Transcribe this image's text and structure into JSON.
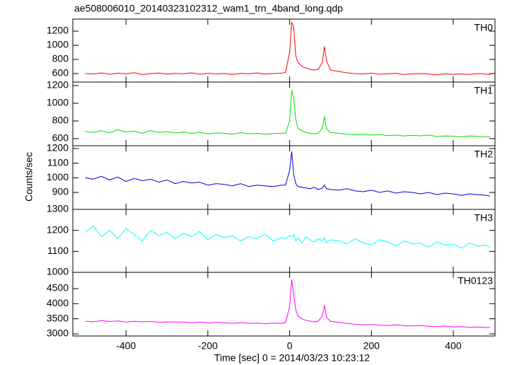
{
  "title": "ae508006010_20140323102312_wam1_trn_4band_long.qdp",
  "ylabel": "Counts/sec",
  "xlabel": "Time [sec] 0 = 2014/03/23 10:23:12",
  "chart_data": [
    {
      "type": "line",
      "xlim": [
        -530,
        502
      ],
      "xticks": [
        -400,
        -200,
        0,
        200,
        400
      ],
      "ylim": [
        480,
        1370
      ],
      "yticks": [
        600,
        800,
        1000,
        1200
      ],
      "x": [
        -500,
        -480,
        -460,
        -440,
        -420,
        -400,
        -380,
        -360,
        -340,
        -320,
        -300,
        -280,
        -260,
        -240,
        -220,
        -200,
        -180,
        -160,
        -140,
        -120,
        -100,
        -80,
        -60,
        -40,
        -20,
        -10,
        0,
        5,
        10,
        15,
        20,
        30,
        40,
        50,
        60,
        70,
        80,
        85,
        90,
        100,
        120,
        140,
        160,
        180,
        200,
        220,
        240,
        260,
        280,
        300,
        320,
        340,
        360,
        380,
        400,
        420,
        440,
        460,
        480,
        490
      ],
      "series": [
        {
          "name": "TH0",
          "color": "#ff0000",
          "values": [
            600,
            595,
            610,
            590,
            605,
            598,
            612,
            585,
            600,
            607,
            593,
            602,
            598,
            610,
            590,
            604,
            596,
            601,
            588,
            603,
            597,
            609,
            592,
            600,
            605,
            615,
            900,
            1330,
            1250,
            850,
            760,
            700,
            680,
            660,
            650,
            660,
            760,
            980,
            780,
            650,
            630,
            610,
            600,
            595,
            605,
            590,
            598,
            602,
            588,
            596,
            600,
            592,
            585,
            598,
            590,
            595,
            587,
            600,
            592,
            585
          ]
        }
      ]
    },
    {
      "type": "line",
      "xlim": [
        -530,
        502
      ],
      "xticks": [
        -400,
        -200,
        0,
        200,
        400
      ],
      "ylim": [
        520,
        1240
      ],
      "yticks": [
        600,
        800,
        1000,
        1200
      ],
      "x": [
        -500,
        -480,
        -460,
        -440,
        -420,
        -400,
        -380,
        -360,
        -340,
        -320,
        -300,
        -280,
        -260,
        -240,
        -220,
        -200,
        -180,
        -160,
        -140,
        -120,
        -100,
        -80,
        -60,
        -40,
        -20,
        -10,
        0,
        5,
        10,
        15,
        20,
        30,
        40,
        50,
        60,
        70,
        80,
        85,
        90,
        100,
        120,
        140,
        160,
        180,
        200,
        220,
        240,
        260,
        280,
        300,
        320,
        340,
        360,
        380,
        400,
        420,
        440,
        460,
        480,
        490
      ],
      "series": [
        {
          "name": "TH1",
          "color": "#00e000",
          "values": [
            680,
            670,
            690,
            665,
            700,
            675,
            685,
            660,
            690,
            670,
            680,
            665,
            675,
            660,
            670,
            655,
            665,
            660,
            650,
            668,
            655,
            660,
            650,
            658,
            662,
            660,
            800,
            1150,
            1050,
            820,
            720,
            690,
            670,
            660,
            655,
            660,
            720,
            850,
            710,
            670,
            660,
            650,
            645,
            650,
            640,
            645,
            635,
            640,
            630,
            638,
            632,
            640,
            625,
            630,
            628,
            620,
            630,
            625,
            618,
            622
          ]
        }
      ]
    },
    {
      "type": "line",
      "xlim": [
        -530,
        502
      ],
      "xticks": [
        -400,
        -200,
        0,
        200,
        400
      ],
      "ylim": [
        784,
        1219
      ],
      "yticks": [
        900,
        1000,
        1100,
        1200
      ],
      "x": [
        -500,
        -480,
        -460,
        -440,
        -420,
        -400,
        -380,
        -360,
        -340,
        -320,
        -300,
        -280,
        -260,
        -240,
        -220,
        -200,
        -180,
        -160,
        -140,
        -120,
        -100,
        -80,
        -60,
        -40,
        -20,
        -10,
        0,
        5,
        10,
        15,
        20,
        30,
        40,
        50,
        60,
        70,
        80,
        85,
        90,
        100,
        120,
        140,
        160,
        180,
        200,
        220,
        240,
        260,
        280,
        300,
        320,
        340,
        360,
        380,
        400,
        420,
        440,
        460,
        480,
        490
      ],
      "series": [
        {
          "name": "TH2",
          "color": "#0000e0",
          "values": [
            1000,
            990,
            1010,
            985,
            1005,
            975,
            995,
            980,
            990,
            970,
            985,
            960,
            975,
            965,
            970,
            950,
            960,
            955,
            945,
            960,
            940,
            950,
            945,
            940,
            950,
            950,
            1050,
            1180,
            1020,
            960,
            940,
            935,
            930,
            925,
            935,
            920,
            930,
            950,
            925,
            920,
            915,
            925,
            910,
            905,
            915,
            900,
            910,
            895,
            905,
            900,
            890,
            900,
            885,
            895,
            890,
            880,
            890,
            885,
            880,
            875
          ]
        }
      ]
    },
    {
      "type": "line",
      "xlim": [
        -530,
        502
      ],
      "xticks": [
        -400,
        -200,
        0,
        200,
        400
      ],
      "ylim": [
        1000,
        1300
      ],
      "yticks": [
        1000,
        1100,
        1200,
        1300
      ],
      "x": [
        -500,
        -480,
        -460,
        -440,
        -420,
        -400,
        -380,
        -360,
        -340,
        -320,
        -300,
        -280,
        -260,
        -240,
        -220,
        -200,
        -180,
        -160,
        -140,
        -120,
        -100,
        -80,
        -60,
        -40,
        -20,
        -10,
        0,
        5,
        10,
        15,
        20,
        30,
        40,
        50,
        60,
        70,
        80,
        85,
        90,
        100,
        120,
        140,
        160,
        180,
        200,
        220,
        240,
        260,
        280,
        300,
        320,
        340,
        360,
        380,
        400,
        420,
        440,
        460,
        480,
        490
      ],
      "series": [
        {
          "name": "TH3",
          "color": "#00ffff",
          "values": [
            1190,
            1220,
            1170,
            1200,
            1160,
            1210,
            1180,
            1150,
            1200,
            1175,
            1190,
            1160,
            1185,
            1170,
            1195,
            1155,
            1180,
            1165,
            1175,
            1150,
            1170,
            1160,
            1180,
            1150,
            1165,
            1160,
            1175,
            1170,
            1180,
            1150,
            1165,
            1140,
            1170,
            1155,
            1145,
            1160,
            1150,
            1165,
            1140,
            1155,
            1150,
            1135,
            1160,
            1140,
            1130,
            1155,
            1145,
            1125,
            1150,
            1135,
            1140,
            1120,
            1145,
            1130,
            1135,
            1115,
            1140,
            1125,
            1130,
            1120
          ]
        }
      ]
    },
    {
      "type": "line",
      "xlim": [
        -530,
        502
      ],
      "xticks": [
        -400,
        -200,
        0,
        200,
        400
      ],
      "ylim": [
        2930,
        5040
      ],
      "yticks": [
        3000,
        3500,
        4000,
        4500
      ],
      "x": [
        -500,
        -480,
        -460,
        -440,
        -420,
        -400,
        -380,
        -360,
        -340,
        -320,
        -300,
        -280,
        -260,
        -240,
        -220,
        -200,
        -180,
        -160,
        -140,
        -120,
        -100,
        -80,
        -60,
        -40,
        -20,
        -10,
        0,
        5,
        10,
        15,
        20,
        30,
        40,
        50,
        60,
        70,
        80,
        85,
        90,
        100,
        120,
        140,
        160,
        180,
        200,
        220,
        240,
        260,
        280,
        300,
        320,
        340,
        360,
        380,
        400,
        420,
        440,
        460,
        480,
        490
      ],
      "series": [
        {
          "name": "TH0123",
          "color": "#ff00ff",
          "values": [
            3420,
            3400,
            3440,
            3410,
            3430,
            3390,
            3420,
            3400,
            3410,
            3380,
            3400,
            3390,
            3395,
            3370,
            3390,
            3360,
            3380,
            3370,
            3350,
            3375,
            3350,
            3360,
            3340,
            3355,
            3350,
            3380,
            3900,
            4800,
            4300,
            3800,
            3600,
            3500,
            3450,
            3420,
            3400,
            3420,
            3600,
            3950,
            3550,
            3420,
            3380,
            3350,
            3320,
            3300,
            3310,
            3290,
            3280,
            3300,
            3270,
            3260,
            3280,
            3250,
            3240,
            3260,
            3230,
            3240,
            3220,
            3230,
            3210,
            3220
          ]
        }
      ]
    }
  ]
}
